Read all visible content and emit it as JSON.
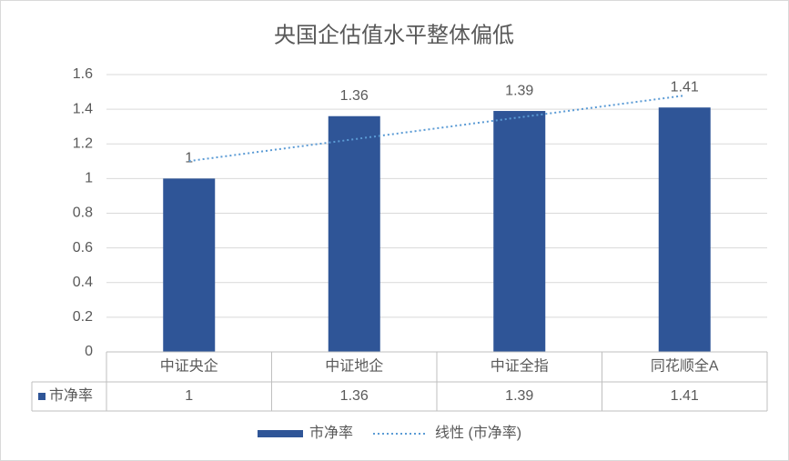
{
  "chart_data": {
    "type": "bar",
    "title": "央国企估值水平整体偏低",
    "categories": [
      "中证央企",
      "中证地企",
      "中证全指",
      "同花顺全A"
    ],
    "series": [
      {
        "name": "市净率",
        "color": "#2f5597",
        "values": [
          1,
          1.36,
          1.39,
          1.41
        ]
      }
    ],
    "trendline": {
      "name": "线性 (市净率)",
      "kind": "linear",
      "color": "#5b9bd5"
    },
    "ylim": [
      0,
      1.6
    ],
    "yticks": [
      0,
      0.2,
      0.4,
      0.6,
      0.8,
      1,
      1.2,
      1.4,
      1.6
    ],
    "grid": true,
    "data_table": true,
    "legend": "bottom"
  }
}
